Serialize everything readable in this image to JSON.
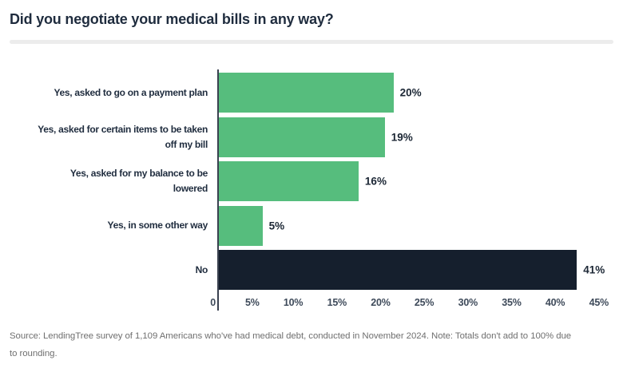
{
  "chart_data": {
    "type": "bar",
    "orientation": "horizontal",
    "title": "Did you negotiate your medical bills in any way?",
    "categories": [
      "Yes, asked to go on a payment plan",
      "Yes, asked for certain items to be taken\noff my bill",
      "Yes, asked for my balance to be\nlowered",
      "Yes, in some other way",
      "No"
    ],
    "values": [
      20,
      19,
      16,
      5,
      41
    ],
    "value_labels": [
      "20%",
      "19%",
      "16%",
      "5%",
      "41%"
    ],
    "bar_colors": [
      "#56BD7D",
      "#56BD7D",
      "#56BD7D",
      "#56BD7D",
      "#151F2D"
    ],
    "xlabel": "",
    "ylabel": "",
    "xlim": [
      0,
      45
    ],
    "x_ticks": [
      0,
      5,
      10,
      15,
      20,
      25,
      30,
      35,
      40,
      45
    ],
    "x_tick_labels": [
      "0",
      "5%",
      "10%",
      "15%",
      "20%",
      "25%",
      "30%",
      "35%",
      "40%",
      "45%"
    ],
    "grid": false,
    "legend": false
  },
  "footer": {
    "source_note": "Source: LendingTree survey of 1,109 Americans who've had medical debt, conducted in November 2024. Note: Totals don't add to 100% due\nto rounding."
  },
  "colors": {
    "bar_green": "#56BD7D",
    "bar_dark_navy": "#151F2D",
    "heading_text": "#1F2C3E",
    "tick_text": "#3E4A5A",
    "source_text": "#6F6F6F",
    "divider": "#ECECEC",
    "axis_line": "#3A4150"
  }
}
